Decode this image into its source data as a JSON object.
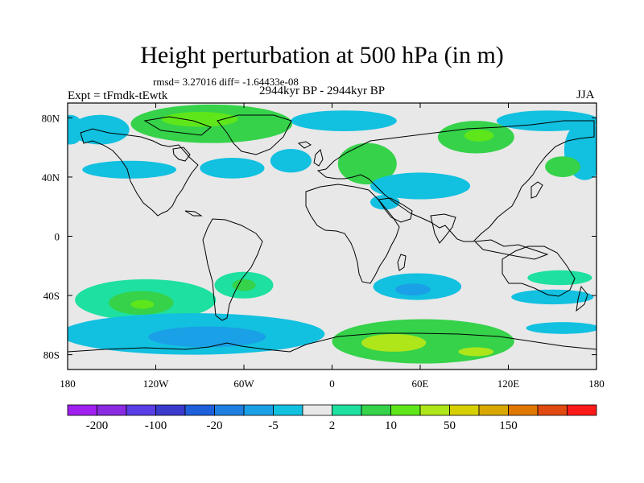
{
  "header": {
    "title": "Height perturbation at 500 hPa (in m)",
    "stats": "rmsd= 3.27016 diff= -1.64433e-08",
    "experiment": "Expt = tFmdk-tEwtk",
    "period": "2944kyr BP - 2944kyr BP",
    "season": "JJA"
  },
  "chart_data": {
    "type": "heatmap",
    "title": "Height perturbation at 500 hPa (in m)",
    "variable": "500 hPa geopotential height perturbation",
    "units": "m",
    "xlim": [
      -180,
      180
    ],
    "ylim": [
      -90,
      90
    ],
    "x_ticks": [
      {
        "value": -180,
        "label": "180"
      },
      {
        "value": -120,
        "label": "120W"
      },
      {
        "value": -60,
        "label": "60W"
      },
      {
        "value": 0,
        "label": "0"
      },
      {
        "value": 60,
        "label": "60E"
      },
      {
        "value": 120,
        "label": "120E"
      },
      {
        "value": 180,
        "label": "180"
      }
    ],
    "y_ticks": [
      {
        "value": 80,
        "label": "80N"
      },
      {
        "value": 40,
        "label": "40N"
      },
      {
        "value": 0,
        "label": "0"
      },
      {
        "value": -40,
        "label": "40S"
      },
      {
        "value": -80,
        "label": "80S"
      }
    ],
    "colorbar": {
      "colors": [
        "#a020f0",
        "#8a2be2",
        "#5a3ee6",
        "#3a3acd",
        "#1e5fdc",
        "#1f7fe0",
        "#1aa0e6",
        "#12c0e0",
        "#e8e8e8",
        "#1ee0a0",
        "#35d24a",
        "#5ee61a",
        "#aee61a",
        "#d6d000",
        "#d8a800",
        "#e07800",
        "#e04a10",
        "#ff1a1a"
      ],
      "labels": [
        {
          "after_index": 0,
          "text": "-200"
        },
        {
          "after_index": 2,
          "text": "-100"
        },
        {
          "after_index": 4,
          "text": "-20"
        },
        {
          "after_index": 6,
          "text": "-5"
        },
        {
          "after_index": 8,
          "text": "2"
        },
        {
          "after_index": 10,
          "text": "10"
        },
        {
          "after_index": 12,
          "text": "50"
        },
        {
          "after_index": 14,
          "text": "150"
        }
      ]
    },
    "anomalies": [
      {
        "name": "greenland-high",
        "lon": -82,
        "lat": 76,
        "rlon": 55,
        "rlat": 13,
        "cls": 10
      },
      {
        "name": "greenland-high-core",
        "lon": -90,
        "lat": 79,
        "rlon": 26,
        "rlat": 5,
        "cls": 11
      },
      {
        "name": "alaska-low",
        "lon": -158,
        "lat": 72,
        "rlon": 20,
        "rlat": 10,
        "cls": 7
      },
      {
        "name": "arctic-low-west",
        "lon": -178,
        "lat": 72,
        "rlon": 9,
        "rlat": 10,
        "cls": 7
      },
      {
        "name": "npac-low",
        "lon": -138,
        "lat": 45,
        "rlon": 32,
        "rlat": 6,
        "cls": 7
      },
      {
        "name": "hudson-low",
        "lon": -68,
        "lat": 46,
        "rlon": 22,
        "rlat": 7,
        "cls": 7
      },
      {
        "name": "atlantic-low",
        "lon": -28,
        "lat": 51,
        "rlon": 14,
        "rlat": 8,
        "cls": 7
      },
      {
        "name": "scandinavia-low",
        "lon": 8,
        "lat": 78,
        "rlon": 36,
        "rlat": 7,
        "cls": 7
      },
      {
        "name": "europe-high",
        "lon": 24,
        "lat": 49,
        "rlon": 20,
        "rlat": 14,
        "cls": 10
      },
      {
        "name": "mideast-low",
        "lon": 60,
        "lat": 34,
        "rlon": 34,
        "rlat": 9,
        "cls": 7
      },
      {
        "name": "arabia-low",
        "lon": 36,
        "lat": 23,
        "rlon": 10,
        "rlat": 5,
        "cls": 7
      },
      {
        "name": "siberia-high",
        "lon": 98,
        "lat": 67,
        "rlon": 26,
        "rlat": 11,
        "cls": 10
      },
      {
        "name": "siberia-high-core",
        "lon": 100,
        "lat": 68,
        "rlon": 10,
        "rlat": 4,
        "cls": 11
      },
      {
        "name": "east-siberia-low",
        "lon": 147,
        "lat": 78,
        "rlon": 35,
        "rlat": 7,
        "cls": 7
      },
      {
        "name": "kamchatka-low",
        "lon": 172,
        "lat": 58,
        "rlon": 14,
        "rlat": 20,
        "cls": 7
      },
      {
        "name": "pacific-high-north",
        "lon": 157,
        "lat": 47,
        "rlon": 12,
        "rlat": 7,
        "cls": 10
      },
      {
        "name": "south-pacific-high",
        "lon": -127,
        "lat": -43,
        "rlon": 48,
        "rlat": 14,
        "cls": 9
      },
      {
        "name": "south-pacific-high-mid",
        "lon": -130,
        "lat": -45,
        "rlon": 22,
        "rlat": 8,
        "cls": 10
      },
      {
        "name": "south-pacific-high-core",
        "lon": -129,
        "lat": -46,
        "rlon": 8,
        "rlat": 3,
        "cls": 11
      },
      {
        "name": "patagonia-high",
        "lon": -60,
        "lat": -33,
        "rlon": 20,
        "rlat": 9,
        "cls": 9
      },
      {
        "name": "patagonia-high-core",
        "lon": -60,
        "lat": -33,
        "rlon": 8,
        "rlat": 4,
        "cls": 10
      },
      {
        "name": "southern-ocean-low",
        "lon": -95,
        "lat": -66,
        "rlon": 90,
        "rlat": 14,
        "cls": 7
      },
      {
        "name": "southern-ocean-low-core",
        "lon": -85,
        "lat": -68,
        "rlon": 40,
        "rlat": 7,
        "cls": 6
      },
      {
        "name": "indian-ocean-low",
        "lon": 58,
        "lat": -34,
        "rlon": 30,
        "rlat": 9,
        "cls": 7
      },
      {
        "name": "indian-ocean-low-core",
        "lon": 55,
        "lat": -36,
        "rlon": 12,
        "rlat": 4,
        "cls": 6
      },
      {
        "name": "east-antarctica-high",
        "lon": 62,
        "lat": -71,
        "rlon": 62,
        "rlat": 15,
        "cls": 10
      },
      {
        "name": "east-antarctica-high-core",
        "lon": 42,
        "lat": -72,
        "rlon": 22,
        "rlat": 6,
        "cls": 12
      },
      {
        "name": "indian-antarctic-high",
        "lon": 98,
        "lat": -78,
        "rlon": 12,
        "rlat": 3,
        "cls": 12
      },
      {
        "name": "australia-high",
        "lon": 155,
        "lat": -28,
        "rlon": 22,
        "rlat": 5,
        "cls": 9
      },
      {
        "name": "australia-low",
        "lon": 150,
        "lat": -41,
        "rlon": 28,
        "rlat": 5,
        "cls": 7
      },
      {
        "name": "tasman-low",
        "lon": 157,
        "lat": -62,
        "rlon": 25,
        "rlat": 4,
        "cls": 7
      }
    ]
  }
}
